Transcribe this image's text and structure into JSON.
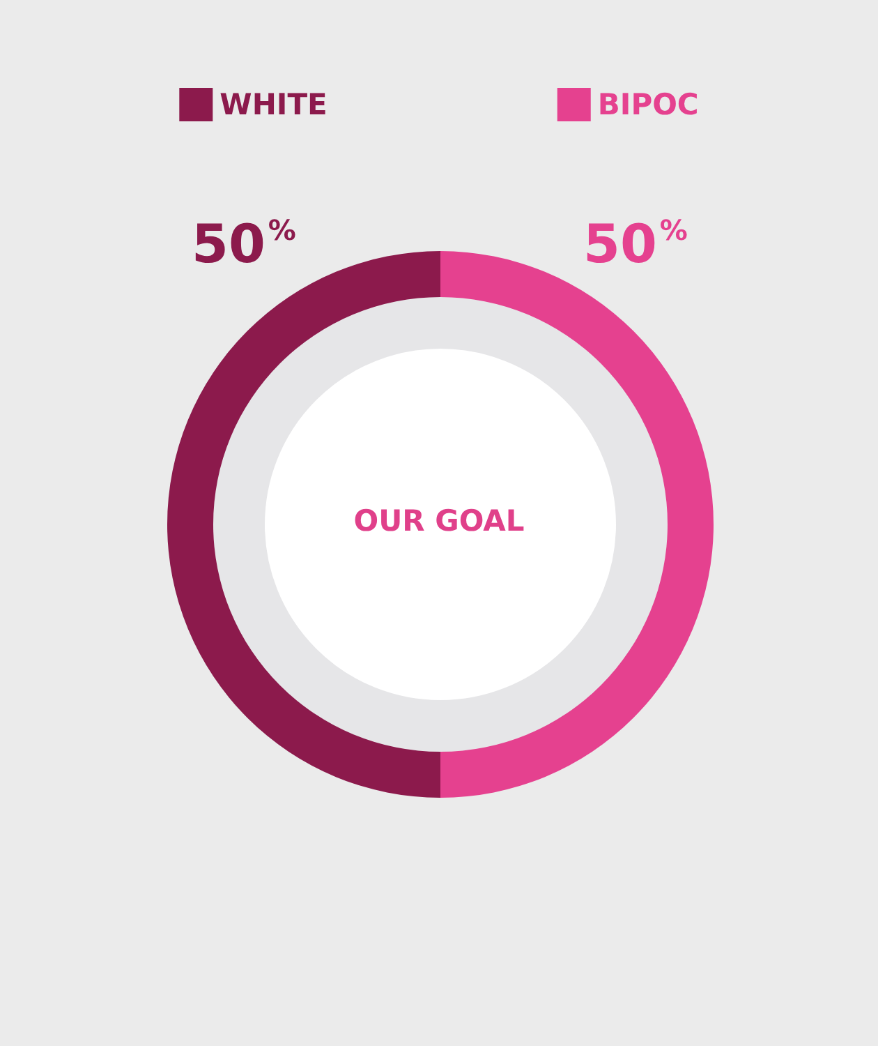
{
  "chart_data": {
    "type": "donut",
    "categories": [
      "WHITE",
      "BIPOC"
    ],
    "values": [
      50,
      50
    ],
    "colors": [
      "#8c1a4c",
      "#e5418f"
    ],
    "value_labels": [
      "50%",
      "50%"
    ],
    "legend": "top",
    "annotations": [
      "OUR GOAL"
    ]
  }
}
